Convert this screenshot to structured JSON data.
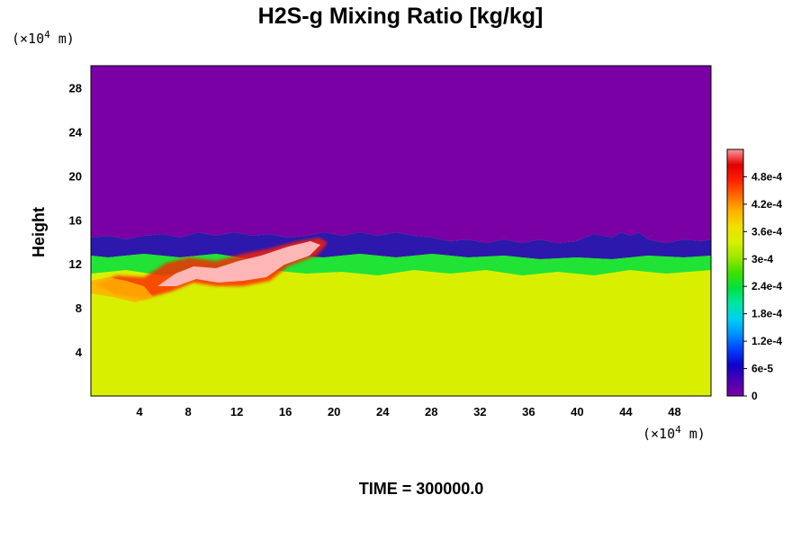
{
  "chart_data": {
    "type": "heatmap",
    "title": "H2S-g Mixing Ratio [kg/kg]",
    "x_unit_base": "(×10",
    "x_unit_exp": "4",
    "x_unit_tail": " m)",
    "y_unit_base": "(×10",
    "y_unit_exp": "4",
    "y_unit_tail": " m)",
    "ylabel": "Height",
    "xlim": [
      0,
      51
    ],
    "ylim": [
      0,
      30
    ],
    "x_ticks": [
      "4",
      "8",
      "12",
      "16",
      "20",
      "24",
      "28",
      "32",
      "36",
      "40",
      "44",
      "48"
    ],
    "y_ticks": [
      "4",
      "8",
      "12",
      "16",
      "20",
      "24",
      "28"
    ],
    "colorbar": {
      "range": [
        0,
        0.00054
      ],
      "labels": [
        "0",
        "6e-5",
        "1.2e-4",
        "1.8e-4",
        "2.4e-4",
        "3e-4",
        "3.6e-4",
        "4.2e-4",
        "4.8e-4"
      ],
      "colors": [
        "#7a00a6",
        "#4b00b4",
        "#1000c8",
        "#0040ff",
        "#0090ff",
        "#00d0f0",
        "#00e6a0",
        "#00e040",
        "#40e000",
        "#9ae800",
        "#d8f000",
        "#f0e000",
        "#ffb000",
        "#ff6a00",
        "#ff2000",
        "#e00000",
        "#ff9a9a"
      ]
    },
    "field_colors": {
      "upper": "#7a00a6",
      "lower": "#d8f000",
      "hotspot": "#ffb6b6"
    },
    "time_label": "TIME = 300000.0"
  }
}
